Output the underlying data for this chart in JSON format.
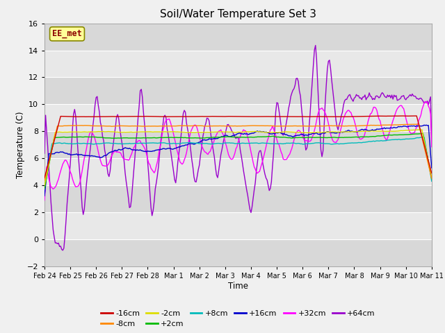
{
  "title": "Soil/Water Temperature Set 3",
  "xlabel": "Time",
  "ylabel": "Temperature (C)",
  "ylim": [
    -2,
    16
  ],
  "yticks": [
    -2,
    0,
    2,
    4,
    6,
    8,
    10,
    12,
    14,
    16
  ],
  "date_labels": [
    "Feb 24",
    "Feb 25",
    "Feb 26",
    "Feb 27",
    "Feb 28",
    "Mar 1",
    "Mar 2",
    "Mar 3",
    "Mar 4",
    "Mar 5",
    "Mar 6",
    "Mar 7",
    "Mar 8",
    "Mar 9",
    "Mar 10",
    "Mar 11"
  ],
  "series_colors": {
    "-16cm": "#cc0000",
    "-8cm": "#ff8800",
    "-2cm": "#dddd00",
    "+2cm": "#00bb00",
    "+8cm": "#00bbbb",
    "+16cm": "#0000cc",
    "+32cm": "#ff00ff",
    "+64cm": "#9900cc"
  },
  "bg_color": "#f0f0f0",
  "grid_color": "#dddddd",
  "watermark_text": "EE_met",
  "watermark_bg": "#ffff99",
  "watermark_border": "#888800"
}
